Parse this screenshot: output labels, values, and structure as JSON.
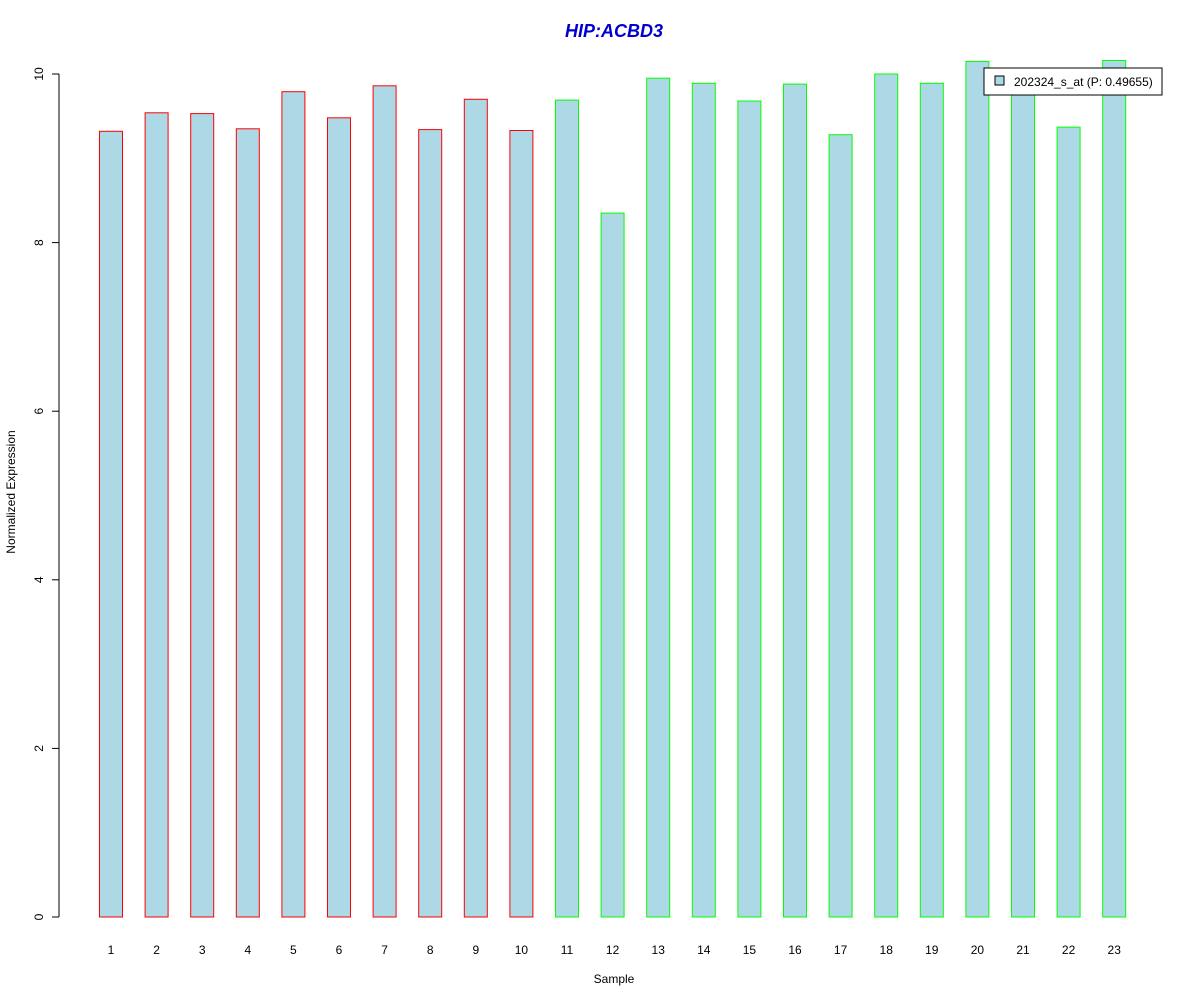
{
  "chart_data": {
    "type": "bar",
    "title": "HIP:ACBD3",
    "xlabel": "Sample",
    "ylabel": "Normalized Expression",
    "categories": [
      "1",
      "2",
      "3",
      "4",
      "5",
      "6",
      "7",
      "8",
      "9",
      "10",
      "11",
      "12",
      "13",
      "14",
      "15",
      "16",
      "17",
      "18",
      "19",
      "20",
      "21",
      "22",
      "23"
    ],
    "series": [
      {
        "name": "202324_s_at (P: 0.49655)",
        "values": [
          9.32,
          9.54,
          9.53,
          9.35,
          9.79,
          9.48,
          9.86,
          9.34,
          9.7,
          9.33,
          9.69,
          8.35,
          9.95,
          9.89,
          9.68,
          9.88,
          9.28,
          10.0,
          9.89,
          10.15,
          9.8,
          9.37,
          10.16
        ]
      }
    ],
    "group_outline_colors": [
      "#ff0000",
      "#ff0000",
      "#ff0000",
      "#ff0000",
      "#ff0000",
      "#ff0000",
      "#ff0000",
      "#ff0000",
      "#ff0000",
      "#ff0000",
      "#00ff00",
      "#00ff00",
      "#00ff00",
      "#00ff00",
      "#00ff00",
      "#00ff00",
      "#00ff00",
      "#00ff00",
      "#00ff00",
      "#00ff00",
      "#00ff00",
      "#00ff00",
      "#00ff00"
    ],
    "ylim": [
      0,
      10
    ],
    "yticks": [
      0,
      2,
      4,
      6,
      8,
      10
    ],
    "grid": false,
    "legend_position": "top-right",
    "colors": {
      "bar_fill": "#add8e6",
      "title": "#0000cd",
      "axis": "#000000"
    }
  }
}
